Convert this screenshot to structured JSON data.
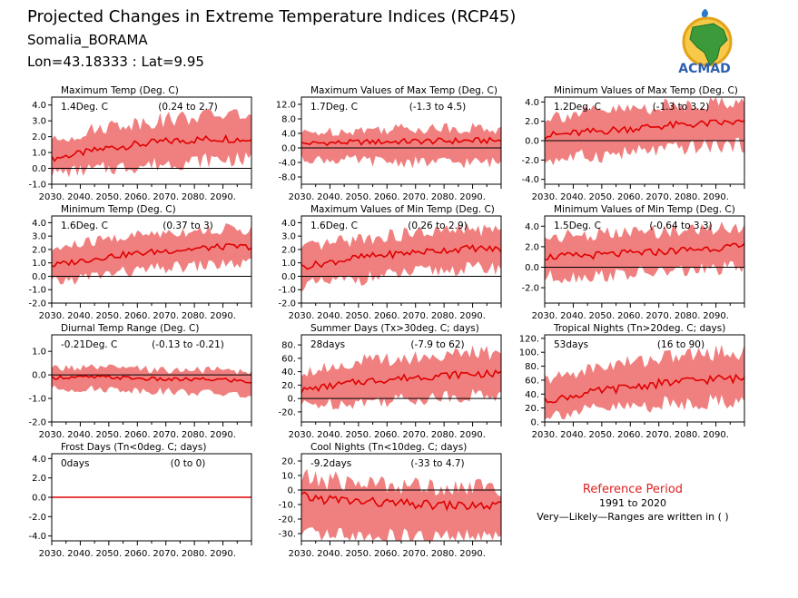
{
  "header": {
    "title": "Projected Changes in Extreme Temperature Indices (RCP45)",
    "station": "Somalia_BORAMA",
    "coords": "Lon=43.18333 : Lat=9.95"
  },
  "logo": {
    "name": "ACMAD",
    "text": "ACMAD",
    "icon": "africa-map-logo"
  },
  "reference": {
    "heading": "Reference Period",
    "period": "1991 to 2020",
    "note": "Very—Likely—Ranges are written in ( )"
  },
  "colors": {
    "band": "#f08080",
    "line": "#e00000",
    "zero": "#000000",
    "reference_heading": "#e02020"
  },
  "chart_data": [
    {
      "type": "line",
      "title": "Maximum Temp (Deg. C)",
      "mean_label": "1.4Deg. C",
      "range_label": "(0.24 to 2.7)",
      "ylim": [
        -1.0,
        4.5
      ],
      "yticks": [
        -1.0,
        0.0,
        1.0,
        2.0,
        3.0,
        4.0
      ],
      "ytick_labels": [
        "-1.0",
        "0.0",
        "1.0",
        "2.0",
        "3.0",
        "4.0"
      ],
      "xlim": [
        2030,
        2100
      ],
      "xticks": [
        2030,
        2040,
        2050,
        2060,
        2070,
        2080,
        2090
      ],
      "xtick_labels": [
        "2030.",
        "2040.",
        "2050.",
        "2060.",
        "2070.",
        "2080.",
        "2090."
      ],
      "x_anchor": [
        2030,
        2050,
        2070,
        2090,
        2100
      ],
      "series": [
        {
          "mean": [
            0.6,
            1.3,
            1.7,
            1.9,
            1.8
          ],
          "low": [
            -0.3,
            0.0,
            0.3,
            0.6,
            0.5
          ],
          "high": [
            1.7,
            2.7,
            3.1,
            3.4,
            3.4
          ]
        }
      ]
    },
    {
      "type": "line",
      "title": "Maximum Values of Max Temp (Deg. C)",
      "mean_label": "1.7Deg. C",
      "range_label": "(-1.3 to 4.5)",
      "ylim": [
        -10,
        14
      ],
      "yticks": [
        -8,
        -4,
        0,
        4,
        8,
        12
      ],
      "ytick_labels": [
        "-8.0",
        "-4.0",
        "0.0",
        "4.0",
        "8.0",
        "12.0"
      ],
      "xlim": [
        2030,
        2100
      ],
      "xticks": [
        2030,
        2040,
        2050,
        2060,
        2070,
        2080,
        2090
      ],
      "xtick_labels": [
        "2030.",
        "2040.",
        "2050.",
        "2060.",
        "2070.",
        "2080.",
        "2090."
      ],
      "x_anchor": [
        2030,
        2050,
        2070,
        2090,
        2100
      ],
      "series": [
        {
          "mean": [
            1.2,
            1.6,
            1.8,
            2.0,
            2.0
          ],
          "low": [
            -3.0,
            -3.5,
            -4.0,
            -4.0,
            -4.0
          ],
          "high": [
            4.0,
            5.0,
            5.5,
            5.5,
            5.0
          ]
        }
      ]
    },
    {
      "type": "line",
      "title": "Minimum Values of Max Temp (Deg. C)",
      "mean_label": "1.2Deg. C",
      "range_label": "(-1.3 to 3.2)",
      "ylim": [
        -4.5,
        4.5
      ],
      "yticks": [
        -4.0,
        -2.0,
        0.0,
        2.0,
        4.0
      ],
      "ytick_labels": [
        "-4.0",
        "-2.0",
        "0.0",
        "2.0",
        "4.0"
      ],
      "xlim": [
        2030,
        2100
      ],
      "xticks": [
        2030,
        2040,
        2050,
        2060,
        2070,
        2080,
        2090
      ],
      "xtick_labels": [
        "2030.",
        "2040.",
        "2050.",
        "2060.",
        "2070.",
        "2080.",
        "2090."
      ],
      "x_anchor": [
        2030,
        2050,
        2070,
        2090,
        2100
      ],
      "series": [
        {
          "mean": [
            0.5,
            1.0,
            1.5,
            1.8,
            1.9
          ],
          "low": [
            -2.0,
            -1.5,
            -1.0,
            -0.5,
            -0.5
          ],
          "high": [
            2.5,
            3.0,
            3.5,
            4.0,
            4.0
          ]
        }
      ]
    },
    {
      "type": "line",
      "title": "Minimum Temp (Deg. C)",
      "mean_label": "1.6Deg. C",
      "range_label": "(0.37 to 3)",
      "ylim": [
        -2.0,
        4.5
      ],
      "yticks": [
        -2.0,
        -1.0,
        0.0,
        1.0,
        2.0,
        3.0,
        4.0
      ],
      "ytick_labels": [
        "-2.0",
        "-1.0",
        "0.0",
        "1.0",
        "2.0",
        "3.0",
        "4.0"
      ],
      "xlim": [
        2030,
        2100
      ],
      "xticks": [
        2030,
        2040,
        2050,
        2060,
        2070,
        2080,
        2090
      ],
      "xtick_labels": [
        "2030.",
        "2040.",
        "2050.",
        "2060.",
        "2070.",
        "2080.",
        "2090."
      ],
      "x_anchor": [
        2030,
        2050,
        2070,
        2090,
        2100
      ],
      "series": [
        {
          "mean": [
            0.8,
            1.5,
            1.9,
            2.2,
            2.2
          ],
          "low": [
            -0.5,
            0.2,
            0.6,
            0.9,
            0.9
          ],
          "high": [
            2.0,
            2.8,
            3.3,
            3.5,
            3.5
          ]
        }
      ]
    },
    {
      "type": "line",
      "title": "Maximum Values of Min Temp (Deg. C)",
      "mean_label": "1.6Deg. C",
      "range_label": "(0.26 to 2.9)",
      "ylim": [
        -2.0,
        4.5
      ],
      "yticks": [
        -2.0,
        -1.0,
        0.0,
        1.0,
        2.0,
        3.0,
        4.0
      ],
      "ytick_labels": [
        "-2.0",
        "-1.0",
        "0.0",
        "1.0",
        "2.0",
        "3.0",
        "4.0"
      ],
      "xlim": [
        2030,
        2100
      ],
      "xticks": [
        2030,
        2040,
        2050,
        2060,
        2070,
        2080,
        2090
      ],
      "xtick_labels": [
        "2030.",
        "2040.",
        "2050.",
        "2060.",
        "2070.",
        "2080.",
        "2090."
      ],
      "x_anchor": [
        2030,
        2050,
        2070,
        2090,
        2100
      ],
      "series": [
        {
          "mean": [
            0.7,
            1.4,
            1.8,
            2.1,
            2.0
          ],
          "low": [
            -0.7,
            -0.2,
            0.3,
            0.6,
            0.6
          ],
          "high": [
            2.0,
            2.8,
            3.2,
            3.5,
            3.4
          ]
        }
      ]
    },
    {
      "type": "line",
      "title": "Minimum Values of Min Temp (Deg. C)",
      "mean_label": "1.5Deg. C",
      "range_label": "(-0.64 to 3.3)",
      "ylim": [
        -3.5,
        5.0
      ],
      "yticks": [
        -2.0,
        0.0,
        2.0,
        4.0
      ],
      "ytick_labels": [
        "-2.0",
        "0.0",
        "2.0",
        "4.0"
      ],
      "xlim": [
        2030,
        2100
      ],
      "xticks": [
        2030,
        2040,
        2050,
        2060,
        2070,
        2080,
        2090
      ],
      "xtick_labels": [
        "2030.",
        "2040.",
        "2050.",
        "2060.",
        "2070.",
        "2080.",
        "2090."
      ],
      "x_anchor": [
        2030,
        2050,
        2070,
        2090,
        2100
      ],
      "series": [
        {
          "mean": [
            1.0,
            1.2,
            1.5,
            1.9,
            2.0
          ],
          "low": [
            -1.0,
            -0.8,
            -0.5,
            -0.2,
            0.0
          ],
          "high": [
            3.0,
            3.2,
            3.5,
            3.8,
            4.0
          ]
        }
      ]
    },
    {
      "type": "line",
      "title": "Diurnal Temp Range (Deg. C)",
      "mean_label": "-0.21Deg. C",
      "range_label": "(-0.13 to -0.21)",
      "ylim": [
        -2.0,
        1.7
      ],
      "yticks": [
        -2.0,
        -1.0,
        0.0,
        1.0
      ],
      "ytick_labels": [
        "-2.0",
        "-1.0",
        "0.0",
        "1.0"
      ],
      "xlim": [
        2030,
        2100
      ],
      "xticks": [
        2030,
        2040,
        2050,
        2060,
        2070,
        2080,
        2090
      ],
      "xtick_labels": [
        "2030.",
        "2040.",
        "2050.",
        "2060.",
        "2070.",
        "2080.",
        "2090."
      ],
      "x_anchor": [
        2030,
        2050,
        2070,
        2090,
        2100
      ],
      "series": [
        {
          "mean": [
            -0.1,
            -0.1,
            -0.2,
            -0.2,
            -0.3
          ],
          "low": [
            -0.6,
            -0.6,
            -0.7,
            -0.8,
            -0.9
          ],
          "high": [
            0.3,
            0.3,
            0.2,
            0.2,
            0.1
          ]
        }
      ]
    },
    {
      "type": "line",
      "title": "Summer Days (Tx>30deg. C; days)",
      "mean_label": "28days",
      "range_label": "(-7.9 to 62)",
      "ylim": [
        -35,
        95
      ],
      "yticks": [
        -20,
        0,
        20,
        40,
        60,
        80
      ],
      "ytick_labels": [
        "-20.",
        "0.",
        "20.",
        "40.",
        "60.",
        "80."
      ],
      "xlim": [
        2030,
        2100
      ],
      "xticks": [
        2030,
        2040,
        2050,
        2060,
        2070,
        2080,
        2090
      ],
      "xtick_labels": [
        "2030.",
        "2040.",
        "2050.",
        "2060.",
        "2070.",
        "2080.",
        "2090."
      ],
      "x_anchor": [
        2030,
        2050,
        2070,
        2090,
        2100
      ],
      "series": [
        {
          "mean": [
            12,
            25,
            32,
            37,
            36
          ],
          "low": [
            -10,
            -5,
            0,
            5,
            5
          ],
          "high": [
            40,
            55,
            62,
            68,
            68
          ]
        }
      ]
    },
    {
      "type": "line",
      "title": "Tropical Nights (Tn>20deg. C; days)",
      "mean_label": "53days",
      "range_label": "(16 to 90)",
      "ylim": [
        0,
        125
      ],
      "yticks": [
        0,
        20,
        40,
        60,
        80,
        100,
        120
      ],
      "ytick_labels": [
        "0.",
        "20.",
        "40.",
        "60.",
        "80.",
        "100.",
        "120."
      ],
      "xlim": [
        2030,
        2100
      ],
      "xticks": [
        2030,
        2040,
        2050,
        2060,
        2070,
        2080,
        2090
      ],
      "xtick_labels": [
        "2030.",
        "2040.",
        "2050.",
        "2060.",
        "2070.",
        "2080.",
        "2090."
      ],
      "x_anchor": [
        2030,
        2050,
        2070,
        2090,
        2100
      ],
      "series": [
        {
          "mean": [
            30,
            45,
            55,
            62,
            62
          ],
          "low": [
            10,
            18,
            25,
            30,
            30
          ],
          "high": [
            60,
            80,
            92,
            100,
            100
          ]
        }
      ]
    },
    {
      "type": "line",
      "title": "Frost Days (Tn<0deg. C; days)",
      "mean_label": "0days",
      "range_label": "(0 to 0)",
      "ylim": [
        -4.5,
        4.5
      ],
      "yticks": [
        -4.0,
        -2.0,
        0.0,
        2.0,
        4.0
      ],
      "ytick_labels": [
        "-4.0",
        "-2.0",
        "0.0",
        "2.0",
        "4.0"
      ],
      "xlim": [
        2030,
        2100
      ],
      "xticks": [
        2030,
        2040,
        2050,
        2060,
        2070,
        2080,
        2090
      ],
      "xtick_labels": [
        "2030.",
        "2040.",
        "2050.",
        "2060.",
        "2070.",
        "2080.",
        "2090."
      ],
      "x_anchor": [
        2030,
        2050,
        2070,
        2090,
        2100
      ],
      "series": [
        {
          "mean": [
            0,
            0,
            0,
            0,
            0
          ],
          "low": [
            0,
            0,
            0,
            0,
            0
          ],
          "high": [
            0,
            0,
            0,
            0,
            0
          ]
        }
      ]
    },
    {
      "type": "line",
      "title": "Cool Nights (Tn<10deg. C; days)",
      "mean_label": "-9.2days",
      "range_label": "(-33 to 4.7)",
      "ylim": [
        -35,
        25
      ],
      "yticks": [
        -30,
        -20,
        -10,
        0,
        10,
        20
      ],
      "ytick_labels": [
        "-30.",
        "-20.",
        "-10.",
        "0.",
        "10.",
        "20."
      ],
      "xlim": [
        2030,
        2100
      ],
      "xticks": [
        2030,
        2040,
        2050,
        2060,
        2070,
        2080,
        2090
      ],
      "xtick_labels": [
        "2030.",
        "2040.",
        "2050.",
        "2060.",
        "2070.",
        "2080.",
        "2090."
      ],
      "x_anchor": [
        2030,
        2050,
        2070,
        2090,
        2100
      ],
      "series": [
        {
          "mean": [
            -5,
            -8,
            -10,
            -11,
            -11
          ],
          "low": [
            -33,
            -33,
            -33,
            -33,
            -33
          ],
          "high": [
            8,
            5,
            3,
            2,
            2
          ]
        }
      ]
    }
  ]
}
